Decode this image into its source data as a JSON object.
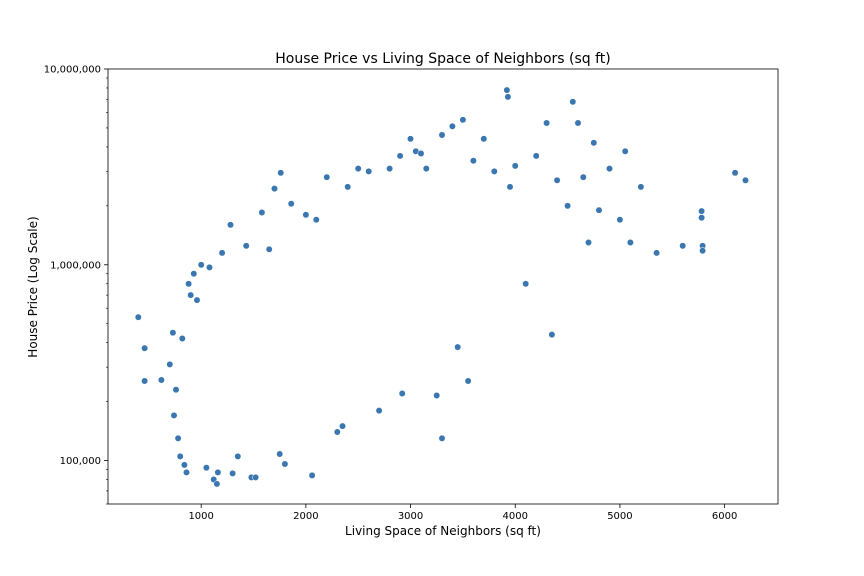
{
  "chart_data": {
    "type": "scatter",
    "title": "House Price vs Living Space of Neighbors (sq ft)",
    "xlabel": "Living Space of Neighbors (sq ft)",
    "ylabel": "House Price (Log Scale)",
    "xlim": [
      110,
      6510
    ],
    "ylim": [
      60000,
      10000000
    ],
    "y_scale": "log",
    "grid": false,
    "x_ticks": [
      {
        "value": 1000,
        "label": "1000"
      },
      {
        "value": 2000,
        "label": "2000"
      },
      {
        "value": 3000,
        "label": "3000"
      },
      {
        "value": 4000,
        "label": "4000"
      },
      {
        "value": 5000,
        "label": "5000"
      },
      {
        "value": 6000,
        "label": "6000"
      }
    ],
    "y_ticks": [
      {
        "value": 100000,
        "label": "100,000"
      },
      {
        "value": 1000000,
        "label": "1,000,000"
      },
      {
        "value": 10000000,
        "label": "10,000,000"
      }
    ],
    "colors": {
      "point_fill": "#3a76af",
      "point_edge": "#ffffff",
      "axis": "#000000",
      "background": "#ffffff"
    },
    "series": [
      {
        "points": [
          [
            399,
            540000
          ],
          [
            460,
            375000
          ],
          [
            460,
            255000
          ],
          [
            620,
            258000
          ],
          [
            700,
            310000
          ],
          [
            730,
            450000
          ],
          [
            740,
            170000
          ],
          [
            760,
            230000
          ],
          [
            780,
            130000
          ],
          [
            800,
            105000
          ],
          [
            820,
            420000
          ],
          [
            840,
            95000
          ],
          [
            860,
            87000
          ],
          [
            880,
            800000
          ],
          [
            900,
            700000
          ],
          [
            930,
            900000
          ],
          [
            960,
            660000
          ],
          [
            1000,
            1000000
          ],
          [
            1050,
            92000
          ],
          [
            1080,
            970000
          ],
          [
            1120,
            80000
          ],
          [
            1150,
            76000
          ],
          [
            1160,
            87000
          ],
          [
            1200,
            1150000
          ],
          [
            1280,
            1600000
          ],
          [
            1300,
            86000
          ],
          [
            1350,
            105000
          ],
          [
            1430,
            1250000
          ],
          [
            1480,
            82000
          ],
          [
            1520,
            82000
          ],
          [
            1580,
            1850000
          ],
          [
            1650,
            1200000
          ],
          [
            1700,
            2450000
          ],
          [
            1750,
            108000
          ],
          [
            1760,
            2950000
          ],
          [
            1800,
            96000
          ],
          [
            1860,
            2050000
          ],
          [
            2000,
            1800000
          ],
          [
            2060,
            84000
          ],
          [
            2100,
            1700000
          ],
          [
            2200,
            2800000
          ],
          [
            2300,
            140000
          ],
          [
            2350,
            150000
          ],
          [
            2400,
            2500000
          ],
          [
            2500,
            3100000
          ],
          [
            2600,
            3000000
          ],
          [
            2700,
            180000
          ],
          [
            2800,
            3100000
          ],
          [
            2900,
            3600000
          ],
          [
            2920,
            220000
          ],
          [
            3000,
            4400000
          ],
          [
            3050,
            3800000
          ],
          [
            3100,
            3700000
          ],
          [
            3150,
            3100000
          ],
          [
            3250,
            215000
          ],
          [
            3300,
            4600000
          ],
          [
            3300,
            130000
          ],
          [
            3400,
            5100000
          ],
          [
            3450,
            380000
          ],
          [
            3500,
            5500000
          ],
          [
            3550,
            255000
          ],
          [
            3600,
            3400000
          ],
          [
            3700,
            4400000
          ],
          [
            3800,
            3000000
          ],
          [
            3920,
            7800000
          ],
          [
            3930,
            7200000
          ],
          [
            3950,
            2500000
          ],
          [
            4000,
            3200000
          ],
          [
            4100,
            800000
          ],
          [
            4200,
            3600000
          ],
          [
            4300,
            5300000
          ],
          [
            4350,
            440000
          ],
          [
            4400,
            2700000
          ],
          [
            4500,
            2000000
          ],
          [
            4550,
            6800000
          ],
          [
            4600,
            5300000
          ],
          [
            4650,
            2800000
          ],
          [
            4700,
            1300000
          ],
          [
            4750,
            4200000
          ],
          [
            4800,
            1900000
          ],
          [
            4900,
            3100000
          ],
          [
            5000,
            1700000
          ],
          [
            5050,
            3800000
          ],
          [
            5100,
            1300000
          ],
          [
            5200,
            2500000
          ],
          [
            5350,
            1150000
          ],
          [
            5600,
            1250000
          ],
          [
            5780,
            1880000
          ],
          [
            5780,
            1740000
          ],
          [
            5790,
            1250000
          ],
          [
            5790,
            1180000
          ],
          [
            6100,
            2950000
          ],
          [
            6200,
            2700000
          ]
        ]
      }
    ]
  }
}
